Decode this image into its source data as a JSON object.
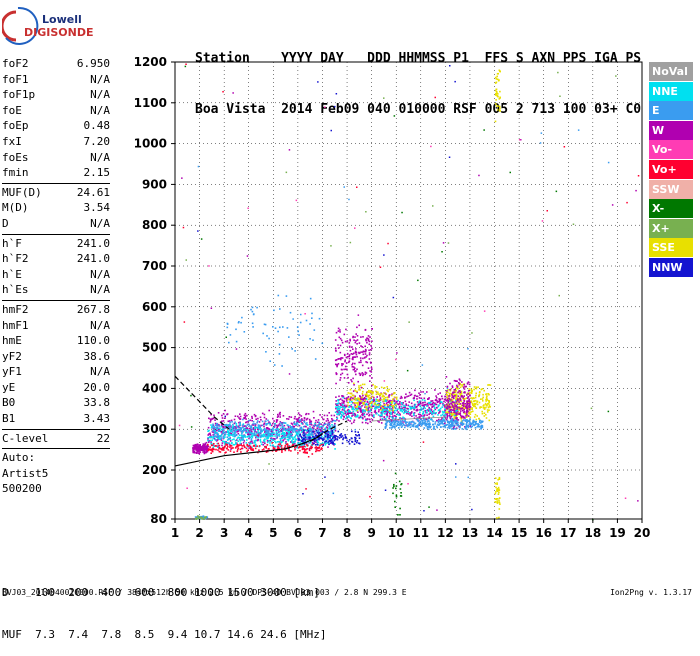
{
  "logo": {
    "line1": "Lowell",
    "line2": "DIGISONDE"
  },
  "header": {
    "row1": "Station    YYYY DAY   DDD HHMMSS P1  FFS S AXN PPS IGA PS",
    "row2": "Boa Vista  2014 Feb09 040 010000 RSF 005 2 713 100 03+ C0"
  },
  "params": [
    [
      {
        "name": "foF2",
        "value": "6.950"
      },
      {
        "name": "foF1",
        "value": "N/A"
      },
      {
        "name": "foF1p",
        "value": "N/A"
      },
      {
        "name": "foE",
        "value": "N/A"
      },
      {
        "name": "foEp",
        "value": "0.48"
      },
      {
        "name": "fxI",
        "value": "7.20"
      },
      {
        "name": "foEs",
        "value": "N/A"
      },
      {
        "name": "fmin",
        "value": "2.15"
      }
    ],
    [
      {
        "name": "MUF(D)",
        "value": "24.61"
      },
      {
        "name": "M(D)",
        "value": "3.54"
      },
      {
        "name": "D",
        "value": "N/A"
      }
    ],
    [
      {
        "name": "h`F",
        "value": "241.0"
      },
      {
        "name": "h`F2",
        "value": "241.0"
      },
      {
        "name": "h`E",
        "value": "N/A"
      },
      {
        "name": "h`Es",
        "value": "N/A"
      }
    ],
    [
      {
        "name": "hmF2",
        "value": "267.8"
      },
      {
        "name": "hmF1",
        "value": "N/A"
      },
      {
        "name": "hmE",
        "value": "110.0"
      },
      {
        "name": "yF2",
        "value": "38.6"
      },
      {
        "name": "yF1",
        "value": "N/A"
      },
      {
        "name": "yE",
        "value": "20.0"
      },
      {
        "name": "B0",
        "value": "33.8"
      },
      {
        "name": "B1",
        "value": "3.43"
      }
    ],
    [
      {
        "name": "C-level",
        "value": "22"
      }
    ]
  ],
  "auto": {
    "line1": "Auto:",
    "line2": "Artist5",
    "line3": "500200"
  },
  "legend": [
    {
      "label": "NoVal",
      "color": "#a0a0a0"
    },
    {
      "label": "NNE",
      "color": "#00e0f0"
    },
    {
      "label": "E",
      "color": "#3a9cf0"
    },
    {
      "label": "W",
      "color": "#b000b0"
    },
    {
      "label": "Vo-",
      "color": "#ff3cb4"
    },
    {
      "label": "Vo+",
      "color": "#ff0030"
    },
    {
      "label": "SSW",
      "color": "#f0b0a8"
    },
    {
      "label": "X-",
      "color": "#007800"
    },
    {
      "label": "X+",
      "color": "#78b050"
    },
    {
      "label": "SSE",
      "color": "#e8e000"
    },
    {
      "label": "NNW",
      "color": "#1414d0"
    }
  ],
  "dmuf": {
    "row1": "D    100  200  400  600  800 1000 1500 3000 [km]",
    "row2": "MUF  7.3  7.4  7.8  8.5  9.4 10.7 14.6 24.6 [MHz]"
  },
  "footer": {
    "left": "BVJ03_2014040010000.RSF / 384fx512h 50 kHz 2.5 km / DPS-4D BVJ03 003 / 2.8 N 299.3 E",
    "right": "Ion2Png v. 1.3.17"
  },
  "chart_data": {
    "type": "scatter",
    "x_ticks": [
      "1",
      "2",
      "3",
      "4",
      "5",
      "6",
      "7",
      "8",
      "9",
      "10",
      "11",
      "12",
      "13",
      "14",
      "15",
      "16",
      "17",
      "18",
      "19",
      "20"
    ],
    "y_ticks": [
      "80",
      "200",
      "300",
      "400",
      "500",
      "600",
      "700",
      "800",
      "900",
      "1000",
      "1100",
      "1200"
    ],
    "xlim": [
      1,
      20
    ],
    "ylim": [
      80,
      1200
    ],
    "xunit": "MHz",
    "yunit": "km",
    "grid": true,
    "legend_position": "right",
    "trace_clusters": [
      {
        "x": [
          1.7,
          2.3
        ],
        "y": [
          240,
          270
        ],
        "color": "#b000b0",
        "n": 160
      },
      {
        "x": [
          2.3,
          7.5
        ],
        "y": [
          250,
          350
        ],
        "color": "#b000b0",
        "n": 650
      },
      {
        "x": [
          2.3,
          7.5
        ],
        "y": [
          250,
          320
        ],
        "color": "#00e0f0",
        "n": 500
      },
      {
        "x": [
          2.5,
          7.5
        ],
        "y": [
          270,
          330
        ],
        "color": "#3a9cf0",
        "n": 300
      },
      {
        "x": [
          2.3,
          7.0
        ],
        "y": [
          240,
          270
        ],
        "color": "#ff0030",
        "n": 200
      },
      {
        "x": [
          6.0,
          8.5
        ],
        "y": [
          260,
          300
        ],
        "color": "#1414d0",
        "n": 150
      },
      {
        "x": [
          7.5,
          12.5
        ],
        "y": [
          310,
          400
        ],
        "color": "#b000b0",
        "n": 700
      },
      {
        "x": [
          7.5,
          12.5
        ],
        "y": [
          320,
          380
        ],
        "color": "#00e0f0",
        "n": 300
      },
      {
        "x": [
          9.5,
          12.5
        ],
        "y": [
          300,
          330
        ],
        "color": "#3a9cf0",
        "n": 250
      },
      {
        "x": [
          8.0,
          10.0
        ],
        "y": [
          340,
          420
        ],
        "color": "#e8e000",
        "n": 150
      },
      {
        "x": [
          12.0,
          13.8
        ],
        "y": [
          310,
          420
        ],
        "color": "#e8e000",
        "n": 300
      },
      {
        "x": [
          12.0,
          13.0
        ],
        "y": [
          300,
          440
        ],
        "color": "#b000b0",
        "n": 200
      },
      {
        "x": [
          12.2,
          13.5
        ],
        "y": [
          300,
          330
        ],
        "color": "#3a9cf0",
        "n": 120
      },
      {
        "x": [
          3.0,
          7.0
        ],
        "y": [
          450,
          650
        ],
        "color": "#3a9cf0",
        "n": 60
      },
      {
        "x": [
          7.5,
          9.0
        ],
        "y": [
          400,
          560
        ],
        "color": "#b000b0",
        "n": 200
      },
      {
        "x": [
          1.8,
          2.3
        ],
        "y": [
          80,
          90
        ],
        "color": "#3a9cf0",
        "n": 30
      },
      {
        "x": [
          1.8,
          2.3
        ],
        "y": [
          80,
          90
        ],
        "color": "#78b050",
        "n": 15
      },
      {
        "x": [
          14.0,
          14.2
        ],
        "y": [
          80,
          200
        ],
        "color": "#e8e000",
        "n": 40
      },
      {
        "x": [
          14.0,
          14.2
        ],
        "y": [
          1050,
          1200
        ],
        "color": "#e8e000",
        "n": 40
      },
      {
        "x": [
          9.8,
          10.2
        ],
        "y": [
          80,
          200
        ],
        "color": "#007800",
        "n": 20
      }
    ],
    "curves": [
      {
        "style": "solid",
        "x": [
          1.0,
          3.0,
          4.5,
          5.5,
          6.2,
          6.8,
          7.0
        ],
        "y": [
          210,
          235,
          245,
          252,
          265,
          280,
          290
        ]
      },
      {
        "style": "dashed",
        "x": [
          1.0,
          1.8,
          2.6,
          3.2
        ],
        "y": [
          430,
          380,
          330,
          300
        ]
      },
      {
        "style": "dashed",
        "x": [
          6.5,
          7.3,
          8.0
        ],
        "y": [
          270,
          300,
          320
        ]
      },
      {
        "style": "light",
        "x": [
          9.0,
          10.5,
          12.0
        ],
        "y": [
          320,
          325,
          330
        ]
      }
    ]
  }
}
